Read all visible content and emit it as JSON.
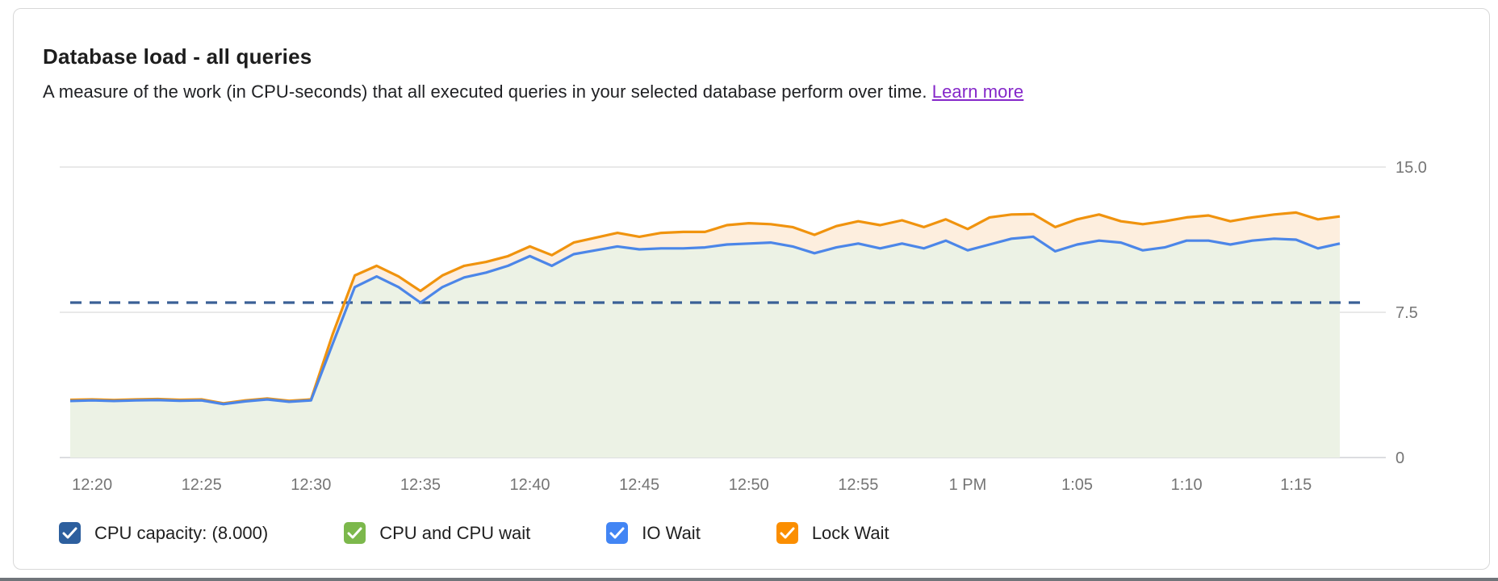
{
  "card": {
    "title": "Database load - all queries",
    "subtitle": "A measure of the work (in CPU-seconds) that all executed queries in your selected database perform over time.",
    "learn_more_label": "Learn more"
  },
  "legend": {
    "items": [
      {
        "id": "cpu-capacity",
        "label": "CPU capacity: (8.000)",
        "color": "#2d5f9e",
        "checked": true
      },
      {
        "id": "cpu-and-cpu-wait",
        "label": "CPU and CPU wait",
        "color": "#7cb84c",
        "checked": true
      },
      {
        "id": "io-wait",
        "label": "IO Wait",
        "color": "#4285f4",
        "checked": true
      },
      {
        "id": "lock-wait",
        "label": "Lock Wait",
        "color": "#fb8e00",
        "checked": true
      }
    ]
  },
  "chart_data": {
    "type": "area",
    "title": "Database load - all queries",
    "ylim": [
      0,
      15
    ],
    "y_ticks": [
      {
        "value": 0,
        "label": "0"
      },
      {
        "value": 7.5,
        "label": "7.5"
      },
      {
        "value": 15,
        "label": "15.0"
      }
    ],
    "grid": "horizontal-only",
    "legend_position": "bottom",
    "times": [
      "12:19",
      "12:20",
      "12:21",
      "12:22",
      "12:23",
      "12:24",
      "12:25",
      "12:26",
      "12:27",
      "12:28",
      "12:29",
      "12:30",
      "12:31",
      "12:32",
      "12:33",
      "12:34",
      "12:35",
      "12:36",
      "12:37",
      "12:38",
      "12:39",
      "12:40",
      "12:41",
      "12:42",
      "12:43",
      "12:44",
      "12:45",
      "12:46",
      "12:47",
      "12:48",
      "12:49",
      "12:50",
      "12:51",
      "12:52",
      "12:53",
      "12:54",
      "12:55",
      "12:56",
      "12:57",
      "12:58",
      "12:59",
      "1:00",
      "1:01",
      "1:02",
      "1:03",
      "1:04",
      "1:05",
      "1:06",
      "1:07",
      "1:08",
      "1:09",
      "1:10",
      "1:11",
      "1:12",
      "1:13",
      "1:14",
      "1:15",
      "1:16",
      "1:17"
    ],
    "x_ticks": [
      {
        "index": 1,
        "label": "12:20"
      },
      {
        "index": 6,
        "label": "12:25"
      },
      {
        "index": 11,
        "label": "12:30"
      },
      {
        "index": 16,
        "label": "12:35"
      },
      {
        "index": 21,
        "label": "12:40"
      },
      {
        "index": 26,
        "label": "12:45"
      },
      {
        "index": 31,
        "label": "12:50"
      },
      {
        "index": 36,
        "label": "12:55"
      },
      {
        "index": 41,
        "label": "1 PM"
      },
      {
        "index": 46,
        "label": "1:05"
      },
      {
        "index": 51,
        "label": "1:10"
      },
      {
        "index": 56,
        "label": "1:15"
      }
    ],
    "capacity_line": {
      "name": "CPU capacity",
      "value": 8.0,
      "color": "#3a6096",
      "style": "dashed"
    },
    "series": [
      {
        "name": "IO Wait",
        "description": "blue boundary line; light green area below is CPU and CPU wait",
        "color": "#4c86e8",
        "fill_below": "#ecf2e5",
        "values": [
          2.92,
          2.95,
          2.92,
          2.95,
          2.97,
          2.93,
          2.95,
          2.76,
          2.9,
          3.0,
          2.88,
          2.95,
          5.9,
          8.8,
          9.35,
          8.8,
          8.0,
          8.8,
          9.3,
          9.55,
          9.9,
          10.4,
          9.9,
          10.5,
          10.7,
          10.9,
          10.75,
          10.8,
          10.8,
          10.85,
          11.0,
          11.05,
          11.1,
          10.9,
          10.55,
          10.85,
          11.05,
          10.8,
          11.05,
          10.8,
          11.2,
          10.7,
          11.0,
          11.3,
          11.4,
          10.65,
          11.0,
          11.2,
          11.1,
          10.7,
          10.85,
          11.2,
          11.2,
          11.0,
          11.2,
          11.3,
          11.25,
          10.8,
          11.05
        ]
      },
      {
        "name": "Lock Wait",
        "description": "orange boundary line; light orange band between blue and orange lines",
        "color": "#f0930e",
        "fill_to_previous": "#fdeede",
        "values": [
          2.98,
          3.0,
          2.97,
          3.0,
          3.02,
          2.98,
          3.0,
          2.8,
          2.95,
          3.05,
          2.93,
          3.0,
          6.4,
          9.4,
          9.9,
          9.35,
          8.6,
          9.4,
          9.9,
          10.1,
          10.4,
          10.9,
          10.45,
          11.1,
          11.35,
          11.6,
          11.4,
          11.6,
          11.65,
          11.65,
          12.0,
          12.1,
          12.05,
          11.9,
          11.5,
          11.95,
          12.2,
          12.0,
          12.25,
          11.9,
          12.3,
          11.8,
          12.4,
          12.55,
          12.57,
          11.9,
          12.3,
          12.55,
          12.2,
          12.05,
          12.2,
          12.4,
          12.5,
          12.2,
          12.4,
          12.55,
          12.65,
          12.3,
          12.45
        ]
      }
    ],
    "colors": {
      "gridline": "#e9e9e9",
      "baseline": "#dcdde0",
      "axis_text": "#757575"
    }
  }
}
